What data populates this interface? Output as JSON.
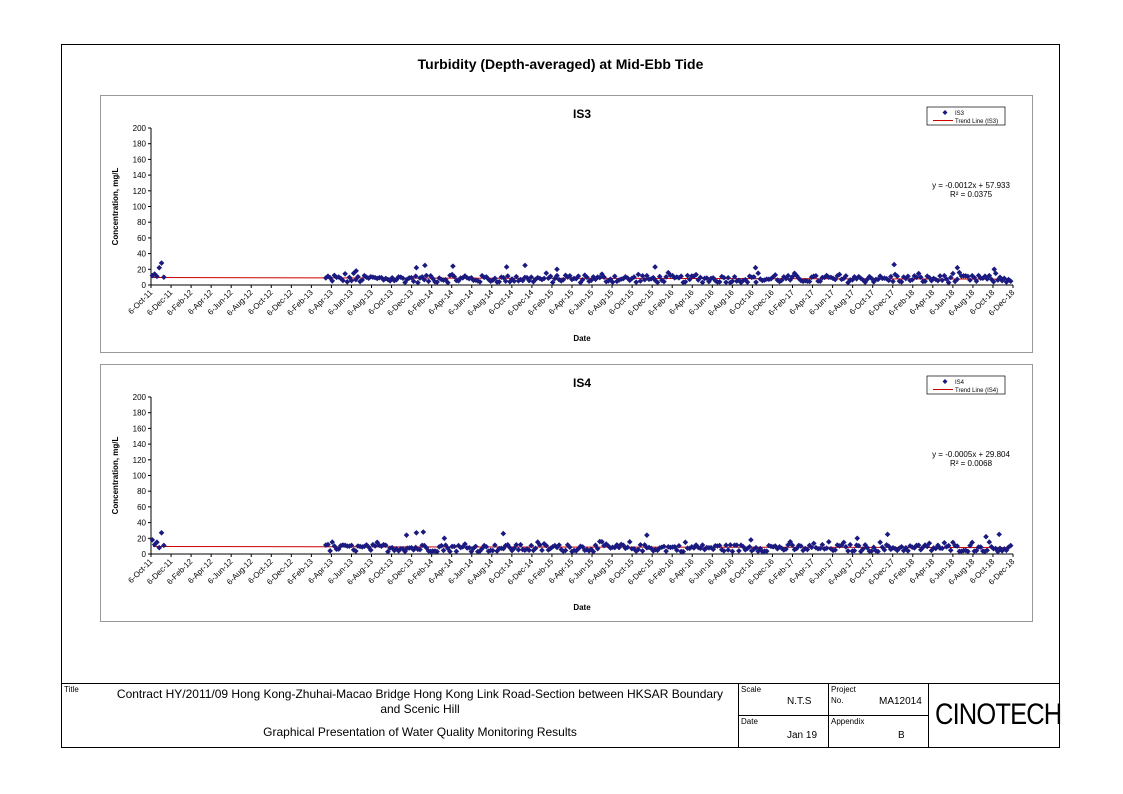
{
  "page_title": "Turbidity (Depth-averaged) at Mid-Ebb Tide",
  "title_block": {
    "title_label": "Title",
    "contract_line1": "Contract HY/2011/09 Hong Kong-Zhuhai-Macao Bridge Hong Kong Link Road-Section between HKSAR Boundary",
    "contract_line2": "and Scenic Hill",
    "subtitle": "Graphical Presentation of Water Quality Monitoring Results",
    "scale_label": "Scale",
    "scale_value": "N.T.S",
    "project_label": "Project",
    "project_no_label": "No.",
    "project_no": "MA12014",
    "date_label": "Date",
    "date_value": "Jan 19",
    "appendix_label": "Appendix",
    "appendix_value": "B",
    "logo_text": "CINOTECH"
  },
  "chart_data": [
    {
      "type": "scatter",
      "title": "IS3",
      "xlabel": "Date",
      "ylabel": "Concentration, mg/L",
      "ylim": [
        0,
        200
      ],
      "yticks": [
        0,
        20,
        40,
        60,
        80,
        100,
        120,
        140,
        160,
        180,
        200
      ],
      "xticks": [
        "6-Oct-11",
        "6-Dec-11",
        "6-Feb-12",
        "6-Apr-12",
        "6-Jun-12",
        "6-Aug-12",
        "6-Oct-12",
        "6-Dec-12",
        "6-Feb-13",
        "6-Apr-13",
        "6-Jun-13",
        "6-Aug-13",
        "6-Oct-13",
        "6-Dec-13",
        "6-Feb-14",
        "6-Apr-14",
        "6-Jun-14",
        "6-Aug-14",
        "6-Oct-14",
        "6-Dec-14",
        "6-Feb-15",
        "6-Apr-15",
        "6-Jun-15",
        "6-Aug-15",
        "6-Oct-15",
        "6-Dec-15",
        "6-Feb-16",
        "6-Apr-16",
        "6-Jun-16",
        "6-Aug-16",
        "6-Oct-16",
        "6-Dec-16",
        "6-Feb-17",
        "6-Apr-17",
        "6-Jun-17",
        "6-Aug-17",
        "6-Oct-17",
        "6-Dec-17",
        "6-Feb-18",
        "6-Apr-18",
        "6-Jun-18",
        "6-Aug-18",
        "6-Oct-18",
        "6-Dec-18"
      ],
      "x_range": [
        "2011-10-06",
        "2018-12-06"
      ],
      "legend": [
        "IS3",
        "Trend Line (IS3)"
      ],
      "legend_position": "top-right",
      "equation": "y = -0.0012x + 57.933",
      "r_squared": "R² = 0.0375",
      "early_points": [
        [
          "2011-10-10",
          12
        ],
        [
          "2011-10-17",
          14
        ],
        [
          "2011-10-24",
          11
        ],
        [
          "2011-10-31",
          22
        ],
        [
          "2011-11-07",
          28
        ],
        [
          "2011-11-14",
          10
        ]
      ],
      "monitoring_start": "2013-03-20",
      "monitoring_end": "2018-11-30",
      "typical_range": [
        3,
        16
      ],
      "peaks": [
        [
          "2013-06-20",
          18
        ],
        [
          "2013-12-20",
          22
        ],
        [
          "2014-01-15",
          25
        ],
        [
          "2014-04-10",
          24
        ],
        [
          "2014-09-20",
          23
        ],
        [
          "2014-11-15",
          25
        ],
        [
          "2015-02-20",
          20
        ],
        [
          "2015-12-15",
          23
        ],
        [
          "2016-10-15",
          22
        ],
        [
          "2017-12-10",
          26
        ],
        [
          "2018-06-20",
          22
        ],
        [
          "2018-10-10",
          20
        ]
      ],
      "trend": {
        "color": "#cc0000",
        "start": 9.5,
        "end": 7.5
      },
      "marker_color": "#1a1a80"
    },
    {
      "type": "scatter",
      "title": "IS4",
      "xlabel": "Date",
      "ylabel": "Concentration, mg/L",
      "ylim": [
        0,
        200
      ],
      "yticks": [
        0,
        20,
        40,
        60,
        80,
        100,
        120,
        140,
        160,
        180,
        200
      ],
      "xticks": [
        "6-Oct-11",
        "6-Dec-11",
        "6-Feb-12",
        "6-Apr-12",
        "6-Jun-12",
        "6-Aug-12",
        "6-Oct-12",
        "6-Dec-12",
        "6-Feb-13",
        "6-Apr-13",
        "6-Jun-13",
        "6-Aug-13",
        "6-Oct-13",
        "6-Dec-13",
        "6-Feb-14",
        "6-Apr-14",
        "6-Jun-14",
        "6-Aug-14",
        "6-Oct-14",
        "6-Dec-14",
        "6-Feb-15",
        "6-Apr-15",
        "6-Jun-15",
        "6-Aug-15",
        "6-Oct-15",
        "6-Dec-15",
        "6-Feb-16",
        "6-Apr-16",
        "6-Jun-16",
        "6-Aug-16",
        "6-Oct-16",
        "6-Dec-16",
        "6-Feb-17",
        "6-Apr-17",
        "6-Jun-17",
        "6-Aug-17",
        "6-Oct-17",
        "6-Dec-17",
        "6-Feb-18",
        "6-Apr-18",
        "6-Jun-18",
        "6-Aug-18",
        "6-Oct-18",
        "6-Dec-18"
      ],
      "x_range": [
        "2011-10-06",
        "2018-12-06"
      ],
      "legend": [
        "IS4",
        "Trend Line (IS4)"
      ],
      "legend_position": "top-right",
      "equation": "y = -0.0005x + 29.804",
      "r_squared": "R² = 0.0068",
      "early_points": [
        [
          "2011-10-10",
          18
        ],
        [
          "2011-10-17",
          12
        ],
        [
          "2011-10-24",
          15
        ],
        [
          "2011-10-31",
          8
        ],
        [
          "2011-11-07",
          27
        ],
        [
          "2011-11-14",
          11
        ]
      ],
      "monitoring_start": "2013-03-20",
      "monitoring_end": "2018-11-30",
      "typical_range": [
        3,
        16
      ],
      "peaks": [
        [
          "2013-11-20",
          24
        ],
        [
          "2013-12-20",
          27
        ],
        [
          "2014-01-10",
          28
        ],
        [
          "2014-03-15",
          20
        ],
        [
          "2014-09-10",
          26
        ],
        [
          "2015-11-20",
          24
        ],
        [
          "2016-10-01",
          18
        ],
        [
          "2017-08-20",
          20
        ],
        [
          "2017-11-20",
          25
        ],
        [
          "2018-09-15",
          22
        ],
        [
          "2018-10-25",
          25
        ]
      ],
      "trend": {
        "color": "#cc0000",
        "start": 9.5,
        "end": 8.2
      },
      "marker_color": "#1a1a80"
    }
  ]
}
